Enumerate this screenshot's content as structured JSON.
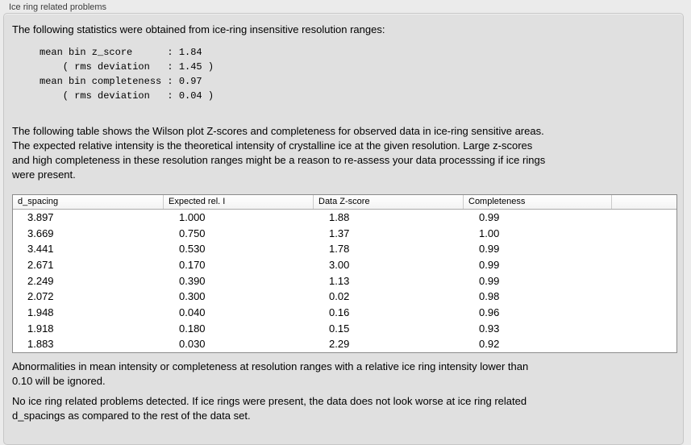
{
  "panel": {
    "title": "Ice ring related problems"
  },
  "intro": {
    "text": "The following statistics were obtained from ice-ring insensitive resolution ranges:"
  },
  "stats_block": {
    "lines": [
      "mean bin z_score      : 1.84",
      "    ( rms deviation   : 1.45 )",
      "mean bin completeness : 0.97",
      "    ( rms deviation   : 0.04 )"
    ]
  },
  "description": {
    "lines": [
      "The following table shows the Wilson plot Z-scores and completeness for observed data in ice-ring sensitive areas.",
      "The expected relative intensity is the theoretical intensity of crystalline ice at the given resolution. Large z-scores",
      "and high completeness in these resolution ranges might be a reason to re-assess your data processsing if ice rings",
      "were present."
    ]
  },
  "table": {
    "headers": [
      "d_spacing",
      "Expected rel. I",
      "Data Z-score",
      "Completeness",
      ""
    ],
    "rows": [
      [
        "3.897",
        "1.000",
        "1.88",
        "0.99"
      ],
      [
        "3.669",
        "0.750",
        "1.37",
        "1.00"
      ],
      [
        "3.441",
        "0.530",
        "1.78",
        "0.99"
      ],
      [
        "2.671",
        "0.170",
        "3.00",
        "0.99"
      ],
      [
        "2.249",
        "0.390",
        "1.13",
        "0.99"
      ],
      [
        "2.072",
        "0.300",
        "0.02",
        "0.98"
      ],
      [
        "1.948",
        "0.040",
        "0.16",
        "0.96"
      ],
      [
        "1.918",
        "0.180",
        "0.15",
        "0.93"
      ],
      [
        "1.883",
        "0.030",
        "2.29",
        "0.92"
      ]
    ]
  },
  "notes": {
    "ignore_note_lines": [
      "Abnormalities in mean intensity or completeness at resolution ranges with a relative ice ring intensity lower than",
      "0.10 will be ignored."
    ],
    "conclusion_lines": [
      "No ice ring related problems detected. If ice rings were present, the data does not look worse at ice ring related",
      "d_spacings as compared to the rest of the data set."
    ]
  },
  "colors": {
    "window_bg": "#ebebeb",
    "panel_bg": "#e0e0e0",
    "table_bg": "#ffffff",
    "table_border": "#8b8b8b",
    "text": "#000000"
  }
}
